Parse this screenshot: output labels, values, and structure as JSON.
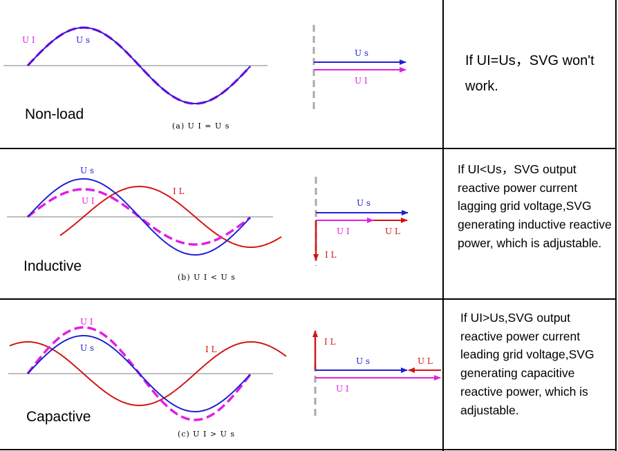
{
  "rows": [
    {
      "label": "Non-load",
      "caption": "(a)  U I = U s",
      "description": "If UI=Us，SVG won't work.",
      "wave_labels": {
        "us": "U s",
        "ui": "U I"
      },
      "phasor_labels": {
        "us": "U s",
        "ui": "U I"
      }
    },
    {
      "label": "Inductive",
      "caption": "(b)  U I < U s",
      "description": "If UI<Us，SVG output reactive power current lagging grid voltage,SVG generating inductive reactive power, which is adjustable.",
      "wave_labels": {
        "us": "U s",
        "ui": "U I",
        "il": "I L"
      },
      "phasor_labels": {
        "us": "U s",
        "ui": "U I",
        "ul": "U L",
        "il": "I L"
      }
    },
    {
      "label": "Capactive",
      "caption": "(c)  U I > U s",
      "description": "If UI>Us,SVG output reactive power current leading grid voltage,SVG generating capacitive reactive power, which is adjustable.",
      "wave_labels": {
        "us": "U s",
        "ui": "U I",
        "il": "I L"
      },
      "phasor_labels": {
        "us": "U s",
        "ui": "U I",
        "ul": "U L",
        "il": "I L"
      }
    }
  ],
  "colors": {
    "us": "#1f1fd6",
    "ui": "#e21ee2",
    "il": "#d41414",
    "axis": "#a9a9a9",
    "border": "#000000"
  }
}
